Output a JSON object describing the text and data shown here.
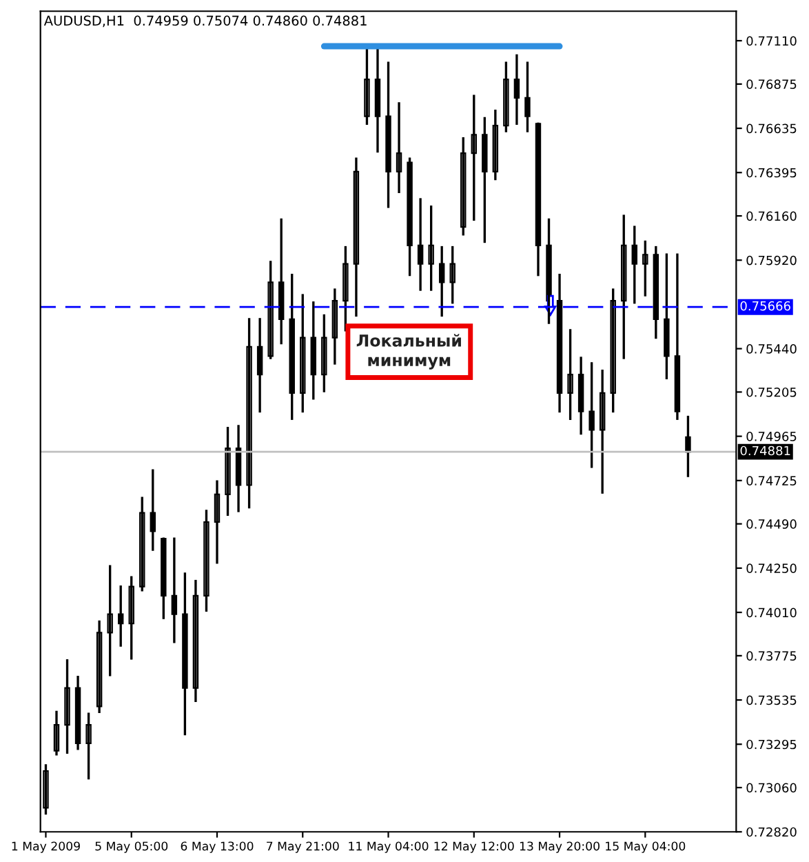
{
  "chart_data": {
    "type": "candlestick",
    "title": "AUDUSD,H1  0.74959 0.75074 0.74860 0.74881",
    "categories": [
      "1 May 2009",
      null,
      null,
      null,
      null,
      null,
      null,
      null,
      "5 May 05:00",
      null,
      null,
      null,
      null,
      null,
      null,
      null,
      "6 May 13:00",
      null,
      null,
      null,
      null,
      null,
      null,
      null,
      "7 May 21:00",
      null,
      null,
      null,
      null,
      null,
      null,
      null,
      "11 May 04:00",
      null,
      null,
      null,
      null,
      null,
      null,
      null,
      "12 May 12:00",
      null,
      null,
      null,
      null,
      null,
      null,
      null,
      "13 May 20:00",
      null,
      null,
      null,
      null,
      null,
      null,
      null,
      "15 May 04:00",
      null,
      null,
      null,
      null
    ],
    "ohlc": [
      [
        0.7295,
        0.7318,
        0.7292,
        0.7315
      ],
      [
        0.7326,
        0.7347,
        0.7324,
        0.734
      ],
      [
        0.734,
        0.7375,
        0.7325,
        0.736
      ],
      [
        0.736,
        0.7366,
        0.7327,
        0.733
      ],
      [
        0.733,
        0.7346,
        0.7311,
        0.734
      ],
      [
        0.735,
        0.7396,
        0.7347,
        0.739
      ],
      [
        0.739,
        0.7426,
        0.7367,
        0.74
      ],
      [
        0.74,
        0.7415,
        0.7383,
        0.7395
      ],
      [
        0.7395,
        0.742,
        0.7376,
        0.7415
      ],
      [
        0.7415,
        0.7463,
        0.7413,
        0.7455
      ],
      [
        0.7455,
        0.7478,
        0.7435,
        0.7445
      ],
      [
        0.7441,
        0.7441,
        0.7398,
        0.741
      ],
      [
        0.741,
        0.7441,
        0.7385,
        0.74
      ],
      [
        0.74,
        0.7422,
        0.7335,
        0.736
      ],
      [
        0.736,
        0.7418,
        0.7353,
        0.741
      ],
      [
        0.741,
        0.7456,
        0.7402,
        0.745
      ],
      [
        0.745,
        0.7472,
        0.7428,
        0.7465
      ],
      [
        0.7465,
        0.7501,
        0.7454,
        0.749
      ],
      [
        0.749,
        0.7502,
        0.7456,
        0.747
      ],
      [
        0.747,
        0.756,
        0.7458,
        0.7545
      ],
      [
        0.7545,
        0.756,
        0.751,
        0.753
      ],
      [
        0.754,
        0.7591,
        0.7539,
        0.758
      ],
      [
        0.758,
        0.7614,
        0.7547,
        0.756
      ],
      [
        0.756,
        0.7584,
        0.7506,
        0.752
      ],
      [
        0.752,
        0.7573,
        0.751,
        0.755
      ],
      [
        0.755,
        0.7569,
        0.7517,
        0.753
      ],
      [
        0.753,
        0.7562,
        0.7521,
        0.755
      ],
      [
        0.755,
        0.7576,
        0.7536,
        0.757
      ],
      [
        0.757,
        0.7599,
        0.7554,
        0.759
      ],
      [
        0.759,
        0.7647,
        0.7562,
        0.764
      ],
      [
        0.767,
        0.7707,
        0.7666,
        0.769
      ],
      [
        0.769,
        0.7707,
        0.7651,
        0.767
      ],
      [
        0.767,
        0.7699,
        0.7621,
        0.764
      ],
      [
        0.764,
        0.7677,
        0.7629,
        0.765
      ],
      [
        0.7645,
        0.7647,
        0.7584,
        0.76
      ],
      [
        0.76,
        0.7625,
        0.7576,
        0.759
      ],
      [
        0.759,
        0.7621,
        0.7576,
        0.76
      ],
      [
        0.759,
        0.7599,
        0.7562,
        0.758
      ],
      [
        0.758,
        0.7599,
        0.7569,
        0.759
      ],
      [
        0.761,
        0.7658,
        0.7606,
        0.765
      ],
      [
        0.765,
        0.7681,
        0.7614,
        0.766
      ],
      [
        0.766,
        0.7669,
        0.7602,
        0.764
      ],
      [
        0.764,
        0.7673,
        0.7636,
        0.7665
      ],
      [
        0.7665,
        0.7699,
        0.7662,
        0.769
      ],
      [
        0.769,
        0.7703,
        0.7666,
        0.768
      ],
      [
        0.768,
        0.7699,
        0.7662,
        0.767
      ],
      [
        0.7666,
        0.7666,
        0.7584,
        0.76
      ],
      [
        0.76,
        0.7614,
        0.7558,
        0.757
      ],
      [
        0.757,
        0.7584,
        0.751,
        0.752
      ],
      [
        0.752,
        0.7554,
        0.7506,
        0.753
      ],
      [
        0.753,
        0.7539,
        0.7498,
        0.751
      ],
      [
        0.751,
        0.7536,
        0.748,
        0.75
      ],
      [
        0.75,
        0.7532,
        0.7466,
        0.752
      ],
      [
        0.752,
        0.7576,
        0.751,
        0.757
      ],
      [
        0.757,
        0.7616,
        0.7539,
        0.76
      ],
      [
        0.76,
        0.761,
        0.7569,
        0.759
      ],
      [
        0.759,
        0.7602,
        0.7573,
        0.7595
      ],
      [
        0.7595,
        0.7599,
        0.755,
        0.756
      ],
      [
        0.756,
        0.7595,
        0.7528,
        0.754
      ],
      [
        0.754,
        0.7595,
        0.7506,
        0.751
      ],
      [
        0.7496,
        0.7507,
        0.7475,
        0.7488
      ]
    ],
    "series": [
      {
        "type": "line",
        "color": "#2f8fe0",
        "values": [
          null,
          null,
          null,
          null,
          null,
          null,
          null,
          null,
          null,
          null,
          null,
          null,
          null,
          null,
          null,
          null,
          null,
          null,
          null,
          null,
          null,
          null,
          null,
          null,
          null,
          null,
          0.7708,
          0.7708,
          0.7708,
          0.7708,
          0.7708,
          0.7708,
          0.7708,
          0.7708,
          0.7708,
          0.7708,
          0.7708,
          0.7708,
          0.7708,
          0.7708,
          0.7708,
          0.7708,
          0.7708,
          0.7708,
          0.7708,
          0.7708,
          0.7708,
          0.7708,
          0.7708,
          null,
          null,
          null,
          null,
          null,
          null,
          null,
          null,
          null,
          null,
          null,
          null
        ]
      }
    ],
    "ref_lines": [
      {
        "axis": "y",
        "value": 0.75666,
        "label": "0.75666",
        "color": "#0000ff",
        "line_style": "dashed"
      },
      {
        "axis": "y",
        "value": 0.74881,
        "label": "0.74881",
        "color": "#c0c0c0",
        "line_style": "solid"
      }
    ],
    "annotations": [
      "Локальный\nминимум"
    ],
    "ylim": [
      0.7282,
      0.7727
    ],
    "yticks": [
      {
        "value": 0.7282,
        "label": "0.72820"
      },
      {
        "value": 0.7306,
        "label": "0.73060"
      },
      {
        "value": 0.73295,
        "label": "0.73295"
      },
      {
        "value": 0.73535,
        "label": "0.73535"
      },
      {
        "value": 0.73775,
        "label": "0.73775"
      },
      {
        "value": 0.7401,
        "label": "0.74010"
      },
      {
        "value": 0.7425,
        "label": "0.74250"
      },
      {
        "value": 0.7449,
        "label": "0.74490"
      },
      {
        "value": 0.74725,
        "label": "0.74725"
      },
      {
        "value": 0.74965,
        "label": "0.74965"
      },
      {
        "value": 0.75205,
        "label": "0.75205"
      },
      {
        "value": 0.7544,
        "label": "0.75440"
      },
      {
        "value": 0.7592,
        "label": "0.75920"
      },
      {
        "value": 0.7616,
        "label": "0.76160"
      },
      {
        "value": 0.76395,
        "label": "0.76395"
      },
      {
        "value": 0.76635,
        "label": "0.76635"
      },
      {
        "value": 0.76875,
        "label": "0.76875"
      },
      {
        "value": 0.7711,
        "label": "0.77110"
      }
    ],
    "grid": false,
    "legend": false
  }
}
